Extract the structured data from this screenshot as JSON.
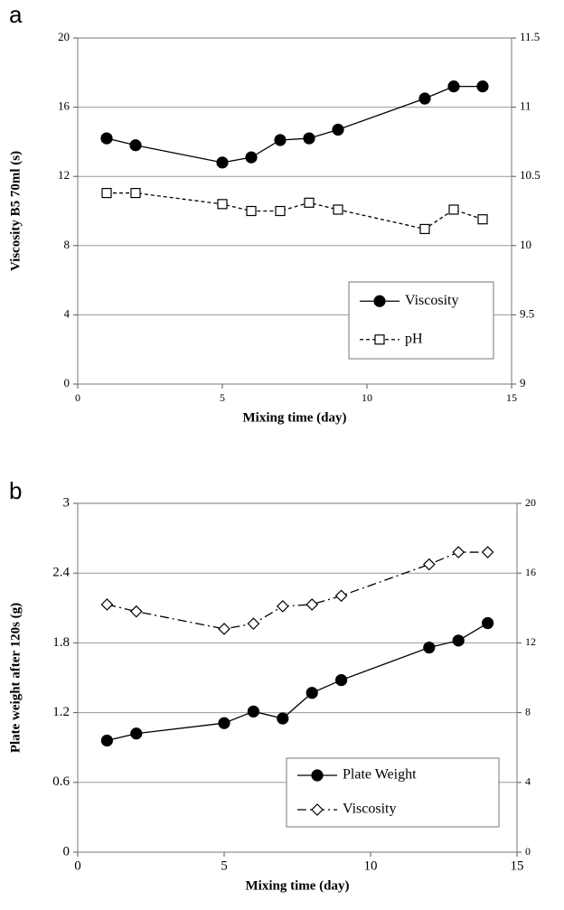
{
  "chart_data": [
    {
      "type": "line",
      "panel_label": "a",
      "x_label": "Mixing time (day)",
      "y_label": "Viscosity B5 70ml (s)",
      "x": [
        1,
        2,
        5,
        6,
        7,
        8,
        9,
        12,
        13,
        14
      ],
      "xlim": [
        0,
        15
      ],
      "xticks": [
        0,
        5,
        10,
        15
      ],
      "ylim": [
        0,
        20
      ],
      "yticks": [
        0,
        4,
        8,
        12,
        16,
        20
      ],
      "y2lim": [
        9,
        11.5
      ],
      "y2ticks": [
        9,
        9.5,
        10,
        10.5,
        11,
        11.5
      ],
      "grid": true,
      "legend": "lower right",
      "series": [
        {
          "name": "Viscosity",
          "color": "#000000",
          "marker": "circle",
          "dash": "solid",
          "values": [
            14.2,
            13.8,
            12.8,
            13.1,
            14.1,
            14.2,
            14.7,
            16.5,
            17.2,
            17.2
          ]
        },
        {
          "name": "pH",
          "color": "#000000",
          "marker": "square",
          "dash": "dashed",
          "axis": "y2",
          "values": [
            10.38,
            10.38,
            10.3,
            10.25,
            10.25,
            10.31,
            10.26,
            10.12,
            10.26,
            10.19
          ]
        }
      ]
    },
    {
      "type": "line",
      "panel_label": "b",
      "x_label": "Mixing time (day)",
      "y_label": "Plate weight after 120s (g)",
      "x": [
        1,
        2,
        5,
        6,
        7,
        8,
        9,
        12,
        13,
        14
      ],
      "xlim": [
        0,
        15
      ],
      "xticks": [
        0,
        5,
        10,
        15
      ],
      "ylim": [
        0,
        3
      ],
      "yticks": [
        0,
        0.6,
        1.2,
        1.8,
        2.4,
        3
      ],
      "y2lim": [
        0,
        20
      ],
      "y2ticks": [
        0,
        4,
        8,
        12,
        16,
        20
      ],
      "grid": true,
      "legend": "lower right",
      "series": [
        {
          "name": "Plate Weight",
          "color": "#000000",
          "marker": "circle",
          "dash": "solid",
          "values": [
            0.96,
            1.02,
            1.11,
            1.21,
            1.15,
            1.37,
            1.48,
            1.76,
            1.82,
            1.97
          ]
        },
        {
          "name": "Viscosity",
          "color": "#000000",
          "marker": "diamond",
          "dash": "dashdot",
          "axis": "y2",
          "values": [
            14.2,
            13.8,
            12.8,
            13.1,
            14.1,
            14.2,
            14.7,
            16.5,
            17.2,
            17.2
          ]
        }
      ]
    }
  ]
}
